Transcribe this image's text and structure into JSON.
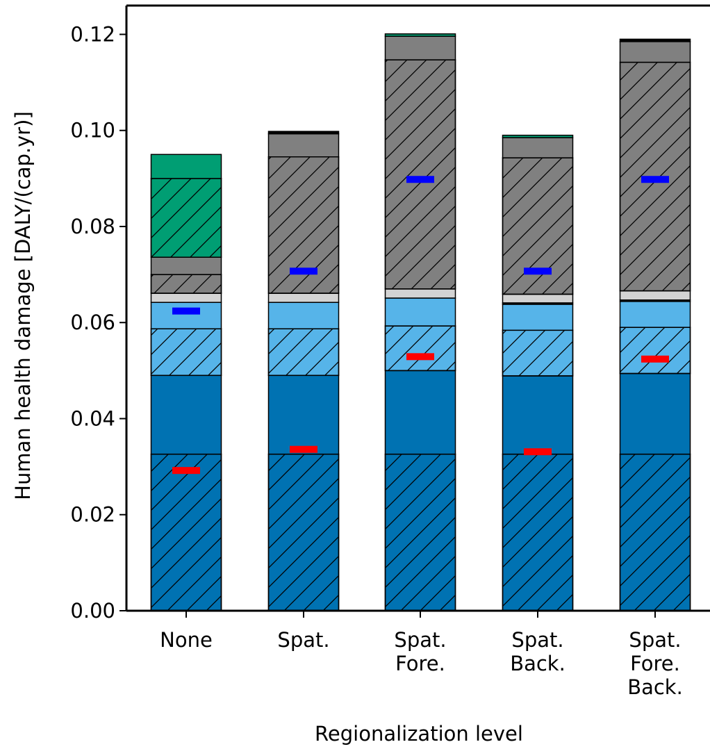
{
  "chart_data": {
    "type": "bar",
    "stacked": true,
    "xlabel": "Regionalization level",
    "ylabel": "Human health damage [DALY/(cap.yr)]",
    "ylim": [
      0,
      0.126
    ],
    "yticks": [
      0.0,
      0.02,
      0.04,
      0.06,
      0.08,
      0.1,
      0.12
    ],
    "ytick_labels": [
      "0.00",
      "0.02",
      "0.04",
      "0.06",
      "0.08",
      "0.10",
      "0.12"
    ],
    "grid": false,
    "categories": [
      [
        "None"
      ],
      [
        "Spat."
      ],
      [
        "Spat.",
        "Fore."
      ],
      [
        "Spat.",
        "Back."
      ],
      [
        "Spat.",
        "Fore.",
        "Back."
      ]
    ],
    "series": [
      {
        "color": "#0072b2",
        "hatch": true,
        "values": [
          0.0326,
          0.0326,
          0.0326,
          0.0326,
          0.0326
        ]
      },
      {
        "color": "#0072b2",
        "hatch": false,
        "values": [
          0.0164,
          0.0164,
          0.0174,
          0.0163,
          0.0168
        ]
      },
      {
        "color": "#56b4e9",
        "hatch": true,
        "values": [
          0.0097,
          0.0097,
          0.0093,
          0.0095,
          0.0096
        ]
      },
      {
        "color": "#56b4e9",
        "hatch": false,
        "values": [
          0.0055,
          0.0055,
          0.0058,
          0.0054,
          0.0054
        ]
      },
      {
        "color": "#000000",
        "hatch": false,
        "values": [
          0.0,
          0.0,
          0.0,
          0.0003,
          0.0003
        ]
      },
      {
        "color": "#d3d3d3",
        "hatch": false,
        "values": [
          0.0019,
          0.0019,
          0.0019,
          0.0018,
          0.0019
        ]
      },
      {
        "color": "#808080",
        "hatch": true,
        "values": [
          0.0039,
          0.0284,
          0.0477,
          0.0284,
          0.0476
        ]
      },
      {
        "color": "#808080",
        "hatch": false,
        "values": [
          0.0036,
          0.0048,
          0.0049,
          0.0042,
          0.0043
        ]
      },
      {
        "color": "#000000",
        "hatch": false,
        "values": [
          0.0,
          0.0005,
          0.0,
          0.0,
          0.0005
        ]
      },
      {
        "color": "#009e73",
        "hatch": true,
        "values": [
          0.0164,
          0.0,
          0.0,
          0.0,
          0.0
        ]
      },
      {
        "color": "#009e73",
        "hatch": false,
        "values": [
          0.005,
          0.0,
          0.0005,
          0.0005,
          0.0
        ]
      }
    ],
    "markers": [
      {
        "color": "#ff0000",
        "values": [
          0.0292,
          0.0336,
          0.0529,
          0.0331,
          0.0524
        ]
      },
      {
        "color": "#0000ff",
        "values": [
          0.0624,
          0.0707,
          0.0898,
          0.0707,
          0.0898
        ]
      }
    ]
  }
}
